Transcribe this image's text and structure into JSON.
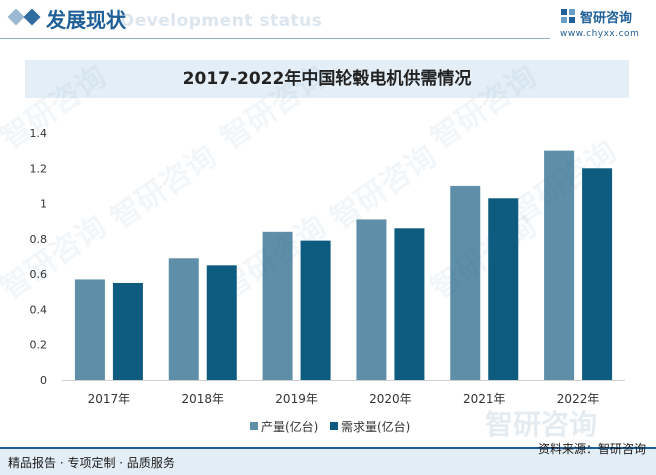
{
  "header": {
    "title": "发展现状",
    "ghost_text": "Development status",
    "logo_name": "智研咨询",
    "logo_url": "www.chyxx.com"
  },
  "footer": {
    "services": "精品报告 · 专项定制 · 品质服务",
    "source": "资料来源：智研咨询"
  },
  "watermark": {
    "text": "智研咨询"
  },
  "colors": {
    "production": "#5f8fa8",
    "demand": "#0d5c7f",
    "title_band": "#e3eef6",
    "brand": "#1f5f98"
  },
  "chart_data": {
    "type": "bar",
    "title": "2017-2022年中国轮毂电机供需情况",
    "categories": [
      "2017年",
      "2018年",
      "2019年",
      "2020年",
      "2021年",
      "2022年"
    ],
    "series": [
      {
        "name": "产量(亿台)",
        "values": [
          0.57,
          0.69,
          0.84,
          0.91,
          1.1,
          1.3
        ]
      },
      {
        "name": "需求量(亿台)",
        "values": [
          0.55,
          0.65,
          0.79,
          0.86,
          1.03,
          1.2
        ]
      }
    ],
    "ylim": [
      0,
      1.4
    ],
    "yticks": [
      "0",
      "0.2",
      "0.4",
      "0.6",
      "0.8",
      "1",
      "1.2",
      "1.4"
    ],
    "xlabel": "",
    "ylabel": "",
    "grid": false,
    "legend_position": "bottom"
  }
}
